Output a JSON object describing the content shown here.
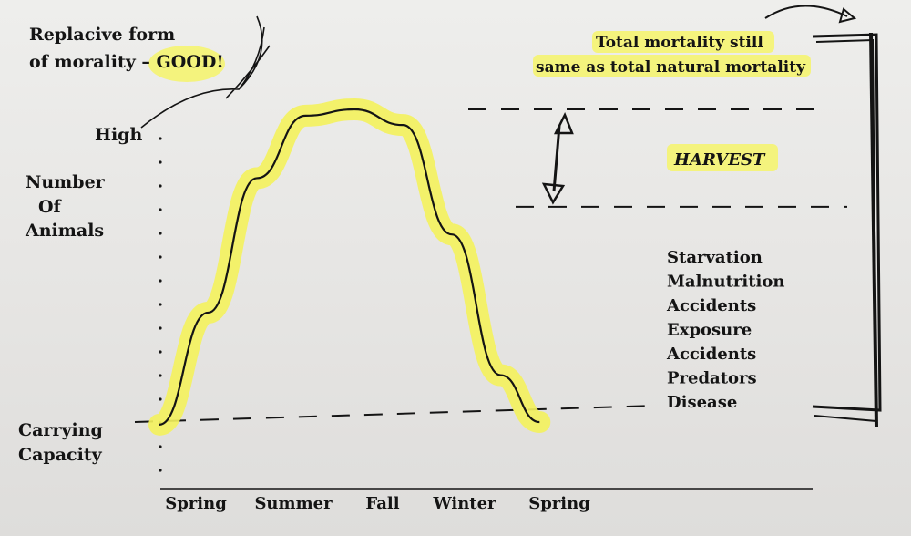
{
  "chart_data": {
    "type": "line",
    "title": "",
    "xlabel": "",
    "ylabel": "Number Of Animals",
    "ylabel_lines": [
      "Number",
      "Of",
      "Animals"
    ],
    "y_high_label": "High",
    "y_low_label_lines": [
      "Carrying",
      "Capacity"
    ],
    "categories": [
      "Spring",
      "Summer",
      "Fall",
      "Winter",
      "Spring"
    ],
    "series": [
      {
        "points": [
          [
            0,
            0.05
          ],
          [
            0.5,
            0.35
          ],
          [
            1,
            0.78
          ],
          [
            1.5,
            0.98
          ],
          [
            2,
            1.0
          ],
          [
            2.5,
            0.95
          ],
          [
            3,
            0.6
          ],
          [
            3.5,
            0.15
          ],
          [
            3.9,
            0.0
          ]
        ]
      }
    ],
    "reference_lines": [
      {
        "level": 0.0,
        "label_lines": [
          "Carrying",
          "Capacity"
        ]
      },
      {
        "level": 1.0
      },
      {
        "level": 0.7
      }
    ],
    "annotations": {
      "top_left_lines": [
        "Replacive form",
        "of morality – GOOD!"
      ],
      "top_left_good": "GOOD!",
      "top_right_lines": [
        "Total mortality still",
        "same as total natural mortality"
      ],
      "harvest": "HARVEST",
      "causes": [
        "Starvation",
        "Malnutrition",
        "Accidents",
        "Exposure",
        "Accidents",
        "Predators",
        "Disease"
      ]
    },
    "colors": {
      "highlight": "#f6f46a",
      "ink": "#141414"
    }
  }
}
